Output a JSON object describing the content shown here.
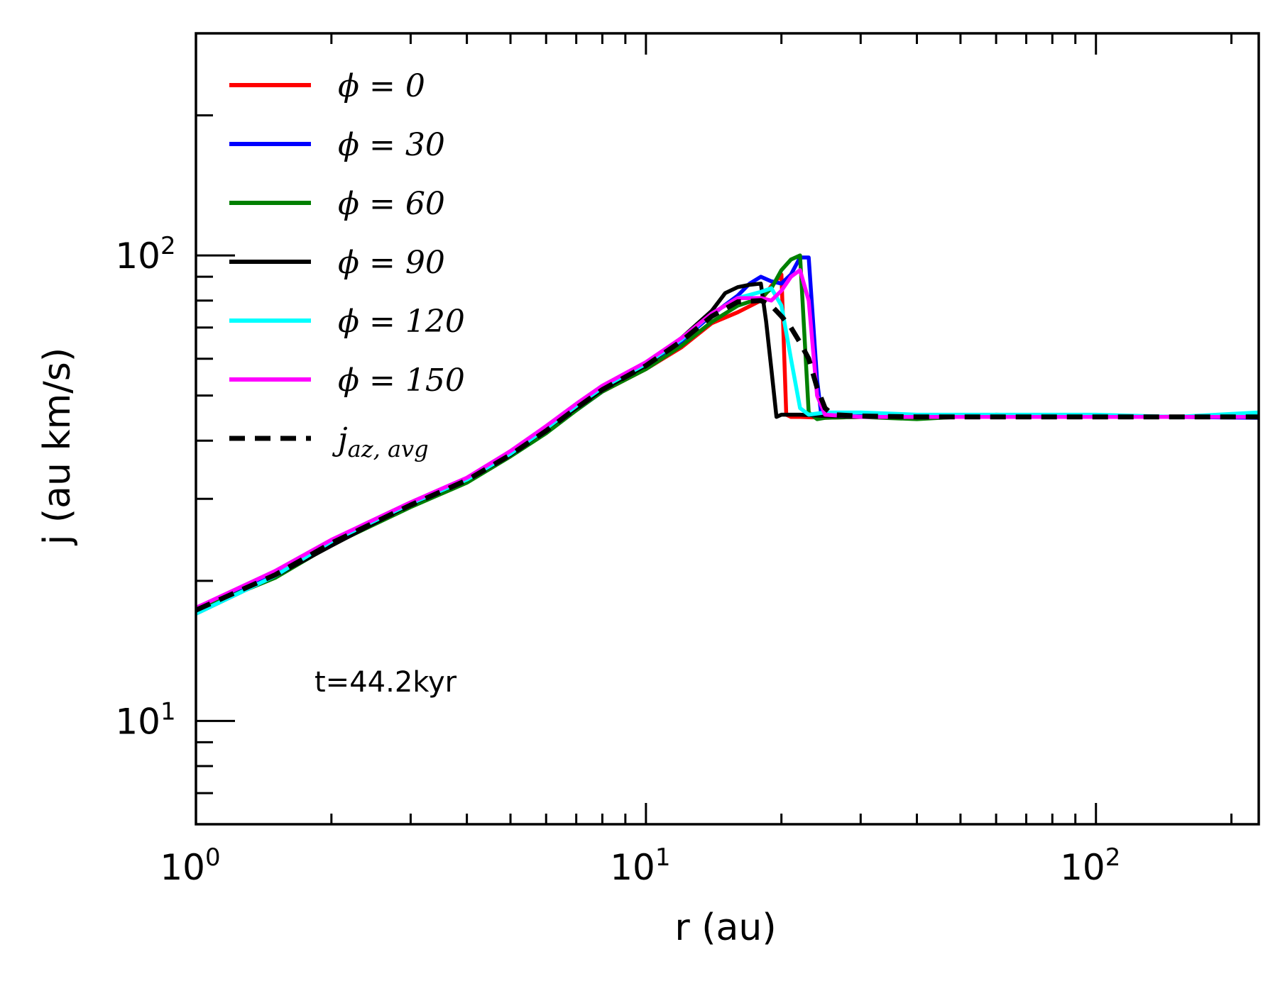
{
  "chart_data": {
    "type": "line",
    "xscale": "log",
    "yscale": "log",
    "xlim": [
      1,
      230
    ],
    "ylim": [
      6,
      300
    ],
    "xlabel": "r (au)",
    "ylabel": "j (au km/s)",
    "x_ticks": [
      {
        "value": 1,
        "base": "10",
        "exp": "0"
      },
      {
        "value": 10,
        "base": "10",
        "exp": "1"
      },
      {
        "value": 100,
        "base": "10",
        "exp": "2"
      }
    ],
    "y_ticks": [
      {
        "value": 10,
        "base": "10",
        "exp": "1"
      },
      {
        "value": 100,
        "base": "10",
        "exp": "2"
      }
    ],
    "annotation": "t=44.2kyr",
    "legend_position": "top-left",
    "series": [
      {
        "name": "ϕ = 0",
        "color": "#ff0000",
        "dash": "",
        "x": [
          1,
          1.5,
          2,
          3,
          4,
          5,
          6,
          7,
          8,
          10,
          12,
          14,
          16,
          18,
          19,
          20,
          20.5,
          21,
          22,
          25,
          30,
          40,
          60,
          100,
          150,
          230
        ],
        "y": [
          17.5,
          20.8,
          24.4,
          29.4,
          33,
          37.5,
          42,
          47,
          51,
          57,
          63.5,
          71.5,
          75.5,
          80,
          86,
          91,
          45.5,
          45,
          45,
          44.8,
          45,
          45.2,
          45,
          45.2,
          45,
          45
        ]
      },
      {
        "name": "ϕ = 30",
        "color": "#0000ff",
        "dash": "",
        "x": [
          1,
          1.5,
          2,
          3,
          4,
          5,
          6,
          7,
          8,
          10,
          12,
          14,
          16,
          17,
          18,
          19,
          20,
          21,
          22,
          23,
          24,
          24.5,
          25,
          30,
          40,
          60,
          100,
          150,
          230
        ],
        "y": [
          17.5,
          20.7,
          24.3,
          29.3,
          33,
          37.4,
          42,
          46.5,
          51,
          57.5,
          65.5,
          74.5,
          82,
          87,
          90,
          88,
          87,
          91,
          99,
          99,
          54,
          46,
          45,
          45.2,
          45,
          45,
          45.2,
          45,
          44.8
        ]
      },
      {
        "name": "ϕ = 60",
        "color": "#008000",
        "dash": "",
        "x": [
          1,
          1.5,
          2,
          3,
          4,
          5,
          6,
          7,
          8,
          10,
          12,
          14,
          16,
          18,
          19,
          20,
          21,
          22,
          23,
          24,
          25,
          30,
          40,
          60,
          100,
          150,
          230
        ],
        "y": [
          17.3,
          20.3,
          23.9,
          28.8,
          32.5,
          37,
          41.5,
          46.5,
          51,
          57,
          64,
          72,
          78,
          81,
          85,
          93,
          98,
          100,
          46,
          44.5,
          44.8,
          45,
          44.5,
          45.5,
          45,
          45,
          45
        ]
      },
      {
        "name": "ϕ = 90",
        "color": "#000000",
        "dash": "",
        "x": [
          1,
          1.5,
          2,
          3,
          4,
          5,
          6,
          7,
          8,
          10,
          12,
          14,
          15,
          16,
          17,
          18,
          18.5,
          19,
          19.5,
          20,
          22,
          25,
          30,
          40,
          60,
          100,
          150,
          230
        ],
        "y": [
          17,
          20.5,
          23.8,
          29.2,
          33,
          37.3,
          42.5,
          47,
          51.5,
          58,
          66.5,
          76,
          83,
          85.5,
          86.5,
          87,
          72,
          57,
          45,
          45.5,
          45.5,
          45.2,
          45,
          45,
          45,
          45,
          45,
          45
        ]
      },
      {
        "name": "ϕ = 120",
        "color": "#00ffff",
        "dash": "",
        "x": [
          1,
          1.5,
          2,
          3,
          4,
          5,
          6,
          7,
          8,
          10,
          12,
          14,
          16,
          18,
          19,
          20,
          21,
          22,
          23,
          25,
          30,
          40,
          60,
          100,
          150,
          230
        ],
        "y": [
          17,
          20.5,
          24.3,
          29.3,
          33,
          37.5,
          42.5,
          47.5,
          52,
          58.5,
          66,
          75,
          81,
          83.5,
          85,
          78,
          60,
          47,
          45.5,
          46,
          46,
          45.5,
          45.5,
          45.5,
          45,
          46
        ]
      },
      {
        "name": "ϕ = 150",
        "color": "#ff00ff",
        "dash": "",
        "x": [
          1,
          1.5,
          2,
          3,
          4,
          5,
          6,
          7,
          8,
          10,
          12,
          14,
          16,
          18,
          19,
          20,
          21,
          22,
          23,
          24,
          25,
          30,
          40,
          60,
          100,
          150,
          230
        ],
        "y": [
          17.5,
          21,
          24.5,
          29.5,
          33.3,
          38,
          43,
          48,
          52.5,
          59,
          66.5,
          75,
          81,
          81,
          80,
          84,
          90,
          93,
          80,
          50,
          45.5,
          45,
          45,
          45,
          45,
          45,
          45
        ]
      },
      {
        "name": "j_az,avg",
        "color": "#000000",
        "dash": "22,14",
        "x": [
          1,
          1.5,
          2,
          3,
          4,
          5,
          6,
          7,
          8,
          10,
          12,
          14,
          16,
          18,
          19,
          20,
          21,
          22,
          23,
          24,
          25,
          26,
          30,
          40,
          60,
          100,
          150,
          230
        ],
        "y": [
          17.3,
          20.6,
          24.1,
          29.1,
          32.9,
          37.3,
          42,
          47,
          51.5,
          58,
          65.5,
          74,
          79.5,
          80,
          78,
          74,
          70,
          65,
          60,
          52,
          47,
          45.5,
          45.2,
          45,
          45,
          45,
          45,
          45
        ]
      }
    ]
  },
  "legend": {
    "entries": [
      {
        "label": "ϕ = 0"
      },
      {
        "label": "ϕ = 30"
      },
      {
        "label": "ϕ = 60"
      },
      {
        "label": "ϕ = 90"
      },
      {
        "label": "ϕ = 120"
      },
      {
        "label": "ϕ = 150"
      },
      {
        "label": "jaz, avg"
      }
    ]
  }
}
